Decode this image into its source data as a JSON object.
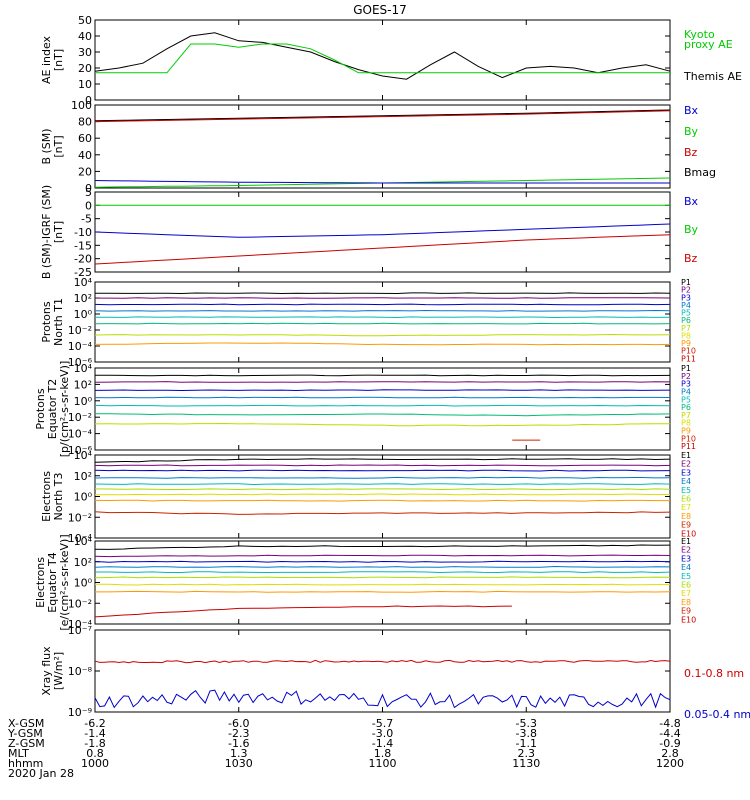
{
  "title": "GOES-17",
  "panels": [
    {
      "id": "ae",
      "ylabel": "AE index",
      "units": "[nT]",
      "yticks": [
        "50",
        "40",
        "30",
        "20",
        "10",
        "0"
      ],
      "ylim": [
        0,
        50
      ],
      "legend": [
        {
          "text": "Kyoto",
          "color": "#00cc00"
        },
        {
          "text": "proxy AE",
          "color": "#00cc00"
        },
        {
          "text": "Themis AE",
          "color": "#000000"
        }
      ]
    },
    {
      "id": "bsm",
      "ylabel": "B (SM)",
      "units": "[nT]",
      "yticks": [
        "100",
        "80",
        "60",
        "40",
        "20",
        "0"
      ],
      "ylim": [
        0,
        100
      ],
      "legend": [
        {
          "text": "Bx",
          "color": "#0000cc"
        },
        {
          "text": "By",
          "color": "#00cc00"
        },
        {
          "text": "Bz",
          "color": "#cc0000"
        },
        {
          "text": "Bmag",
          "color": "#000000"
        }
      ]
    },
    {
      "id": "bigrf",
      "ylabel": "B (SM)-IGRF (SM)",
      "units": "[nT]",
      "yticks": [
        "5",
        "0",
        "-5",
        "-10",
        "-15",
        "-20",
        "-25"
      ],
      "ylim": [
        -25,
        5
      ],
      "legend": [
        {
          "text": "Bx",
          "color": "#0000cc"
        },
        {
          "text": "By",
          "color": "#00cc00"
        },
        {
          "text": "Bz",
          "color": "#cc0000"
        }
      ]
    },
    {
      "id": "pn",
      "ylabel": "Protons",
      "ylabel2": "North T1",
      "units": "",
      "yticks": [
        "10⁴",
        "10²",
        "10⁰",
        "10⁻²",
        "10⁻⁴",
        "10⁻⁶"
      ],
      "ylim": [
        -6,
        4
      ],
      "legend": [
        {
          "text": "P1",
          "color": "#000000"
        },
        {
          "text": "P2",
          "color": "#7a007a"
        },
        {
          "text": "P3",
          "color": "#0000cc"
        },
        {
          "text": "P4",
          "color": "#007acc"
        },
        {
          "text": "P5",
          "color": "#00bbbb"
        },
        {
          "text": "P6",
          "color": "#00bb77"
        },
        {
          "text": "P7",
          "color": "#bbdd00"
        },
        {
          "text": "P8",
          "color": "#dddd00"
        },
        {
          "text": "P9",
          "color": "#ff9900"
        },
        {
          "text": "P10",
          "color": "#cc2200"
        },
        {
          "text": "P11",
          "color": "#cc0000"
        }
      ]
    },
    {
      "id": "pe",
      "ylabel": "Protons",
      "ylabel2": "Equator T2",
      "units": "[p/(cm²-s-sr-keV)]",
      "yticks": [
        "10⁴",
        "10²",
        "10⁰",
        "10⁻²",
        "10⁻⁴",
        "10⁻⁶"
      ],
      "ylim": [
        -6,
        4
      ],
      "legend": [
        {
          "text": "P1",
          "color": "#000000"
        },
        {
          "text": "P2",
          "color": "#7a007a"
        },
        {
          "text": "P3",
          "color": "#0000cc"
        },
        {
          "text": "P4",
          "color": "#007acc"
        },
        {
          "text": "P5",
          "color": "#00bbbb"
        },
        {
          "text": "P6",
          "color": "#00bb77"
        },
        {
          "text": "P7",
          "color": "#bbdd00"
        },
        {
          "text": "P8",
          "color": "#dddd00"
        },
        {
          "text": "P9",
          "color": "#ff9900"
        },
        {
          "text": "P10",
          "color": "#cc2200"
        },
        {
          "text": "P11",
          "color": "#cc0000"
        }
      ]
    },
    {
      "id": "en",
      "ylabel": "Electrons",
      "ylabel2": "North T3",
      "units": "",
      "yticks": [
        "10⁴",
        "10²",
        "10⁰",
        "10⁻²",
        "10⁻⁴"
      ],
      "ylim": [
        -4,
        4
      ],
      "legend": [
        {
          "text": "E1",
          "color": "#000000"
        },
        {
          "text": "E2",
          "color": "#7a007a"
        },
        {
          "text": "E3",
          "color": "#0000cc"
        },
        {
          "text": "E4",
          "color": "#007acc"
        },
        {
          "text": "E5",
          "color": "#00bbbb"
        },
        {
          "text": "E6",
          "color": "#aadd00"
        },
        {
          "text": "E7",
          "color": "#dddd00"
        },
        {
          "text": "E8",
          "color": "#ff9900"
        },
        {
          "text": "E9",
          "color": "#cc2200"
        },
        {
          "text": "E10",
          "color": "#cc0000"
        }
      ]
    },
    {
      "id": "ee",
      "ylabel": "Electrons",
      "ylabel2": "Equator T4",
      "units": "[e/(cm²-s-sr-keV)]",
      "yticks": [
        "10⁴",
        "10²",
        "10⁰",
        "10⁻²",
        "10⁻⁴"
      ],
      "ylim": [
        -4,
        4
      ],
      "legend": [
        {
          "text": "E1",
          "color": "#000000"
        },
        {
          "text": "E2",
          "color": "#7a007a"
        },
        {
          "text": "E3",
          "color": "#0000cc"
        },
        {
          "text": "E4",
          "color": "#007acc"
        },
        {
          "text": "E5",
          "color": "#00bbbb"
        },
        {
          "text": "E6",
          "color": "#aadd00"
        },
        {
          "text": "E7",
          "color": "#dddd00"
        },
        {
          "text": "E8",
          "color": "#ff9900"
        },
        {
          "text": "E9",
          "color": "#cc2200"
        },
        {
          "text": "E10",
          "color": "#cc0000"
        }
      ]
    },
    {
      "id": "xray",
      "ylabel": "Xray flux",
      "units": "[W/m²]",
      "yticks": [
        "10⁻⁷",
        "10⁻⁸",
        "10⁻⁹"
      ],
      "ylim": [
        -9,
        -7
      ],
      "legend": [
        {
          "text": "0.1-0.8 nm",
          "color": "#cc0000"
        },
        {
          "text": "0.05-0.4 nm",
          "color": "#0000cc"
        }
      ]
    }
  ],
  "xaxis": {
    "rows": [
      {
        "label": "X-GSM",
        "values": [
          "-6.2",
          "-6.0",
          "-5.7",
          "-5.3",
          "-4.8"
        ]
      },
      {
        "label": "Y-GSM",
        "values": [
          "-1.4",
          "-2.3",
          "-3.0",
          "-3.8",
          "-4.4"
        ]
      },
      {
        "label": "Z-GSM",
        "values": [
          "-1.8",
          "-1.6",
          "-1.4",
          "-1.1",
          "-0.9"
        ]
      },
      {
        "label": "MLT",
        "values": [
          "0.8",
          "1.3",
          "1.8",
          "2.3",
          "2.8"
        ]
      },
      {
        "label": "hhmm",
        "values": [
          "1000",
          "1030",
          "1100",
          "1130",
          "1200"
        ]
      }
    ],
    "date": "2020 Jan 28"
  },
  "chart_data": [
    {
      "type": "line",
      "title": "GOES-17",
      "ylabel": "AE index [nT]",
      "ylim": [
        0,
        50
      ],
      "x": [
        "1000",
        "1005",
        "1010",
        "1015",
        "1020",
        "1025",
        "1030",
        "1035",
        "1040",
        "1045",
        "1050",
        "1055",
        "1100",
        "1105",
        "1110",
        "1115",
        "1120",
        "1125",
        "1130",
        "1135",
        "1140",
        "1145",
        "1150",
        "1155",
        "1200"
      ],
      "series": [
        {
          "name": "Themis AE",
          "color": "#000000",
          "values": [
            18,
            20,
            23,
            32,
            40,
            42,
            37,
            36,
            33,
            30,
            24,
            19,
            15,
            13,
            22,
            30,
            21,
            14,
            20,
            21,
            20,
            17,
            20,
            22,
            18
          ]
        },
        {
          "name": "Kyoto proxy AE",
          "color": "#00cc00",
          "values": [
            17,
            17,
            17,
            17,
            35,
            35,
            33,
            35,
            35,
            32,
            25,
            17,
            17,
            17,
            17,
            17,
            17,
            17,
            17,
            17,
            17,
            17,
            17,
            17,
            17
          ]
        }
      ]
    },
    {
      "type": "line",
      "ylabel": "B (SM) [nT]",
      "ylim": [
        0,
        100
      ],
      "x": [
        "1000",
        "1030",
        "1100",
        "1130",
        "1200"
      ],
      "series": [
        {
          "name": "Bmag",
          "color": "#000000",
          "values": [
            81,
            84,
            87,
            90,
            94
          ]
        },
        {
          "name": "Bz",
          "color": "#cc0000",
          "values": [
            80,
            83,
            86,
            89,
            93
          ]
        },
        {
          "name": "By",
          "color": "#00cc00",
          "values": [
            1,
            3,
            6,
            9,
            12
          ]
        },
        {
          "name": "Bx",
          "color": "#0000cc",
          "values": [
            9,
            7,
            6,
            6,
            6
          ]
        }
      ]
    },
    {
      "type": "line",
      "ylabel": "B (SM)-IGRF (SM) [nT]",
      "ylim": [
        -25,
        5
      ],
      "x": [
        "1000",
        "1030",
        "1100",
        "1130",
        "1200"
      ],
      "series": [
        {
          "name": "By",
          "color": "#00cc00",
          "values": [
            0,
            0,
            0,
            0,
            0
          ]
        },
        {
          "name": "Bx",
          "color": "#0000cc",
          "values": [
            -10,
            -12,
            -11,
            -9,
            -7
          ]
        },
        {
          "name": "Bz",
          "color": "#cc0000",
          "values": [
            -22,
            -19,
            -16,
            -13,
            -11
          ]
        }
      ]
    },
    {
      "type": "line",
      "ylabel": "Protons North T1 (log10)",
      "ylim": [
        -6,
        4
      ],
      "x": [
        "1000",
        "1030",
        "1100",
        "1130",
        "1200"
      ],
      "series": [
        {
          "name": "P1",
          "values": [
            2.6,
            2.6,
            2.6,
            2.6,
            2.6
          ]
        },
        {
          "name": "P2",
          "values": [
            2.0,
            2.0,
            2.0,
            2.0,
            2.0
          ]
        },
        {
          "name": "P3",
          "values": [
            1.2,
            1.2,
            1.2,
            1.2,
            1.2
          ]
        },
        {
          "name": "P4",
          "values": [
            0.4,
            0.4,
            0.4,
            0.4,
            0.4
          ]
        },
        {
          "name": "P5",
          "values": [
            -0.4,
            -0.4,
            -0.4,
            -0.4,
            -0.4
          ]
        },
        {
          "name": "P6",
          "values": [
            -1.2,
            -1.2,
            -1.2,
            -1.2,
            -1.2
          ]
        },
        {
          "name": "P7",
          "values": [
            -2.6,
            -2.6,
            -2.7,
            -2.6,
            -2.6
          ]
        },
        {
          "name": "P9",
          "values": [
            -3.8,
            -3.6,
            -3.8,
            -3.8,
            -3.8
          ]
        }
      ]
    },
    {
      "type": "line",
      "ylabel": "Protons Equator T2 [p/(cm2-s-sr-keV)] (log10)",
      "ylim": [
        -6,
        4
      ],
      "x": [
        "1000",
        "1030",
        "1100",
        "1130",
        "1200"
      ],
      "series": [
        {
          "name": "P1",
          "values": [
            3.1,
            3.1,
            3.1,
            3.1,
            3.1
          ]
        },
        {
          "name": "P2",
          "values": [
            2.3,
            2.3,
            2.3,
            2.3,
            2.3
          ]
        },
        {
          "name": "P3",
          "values": [
            1.3,
            1.3,
            1.3,
            1.3,
            1.3
          ]
        },
        {
          "name": "P4",
          "values": [
            0.4,
            0.4,
            0.4,
            0.4,
            0.4
          ]
        },
        {
          "name": "P5",
          "values": [
            -0.6,
            -0.6,
            -0.6,
            -0.6,
            -0.6
          ]
        },
        {
          "name": "P6",
          "values": [
            -1.6,
            -1.7,
            -1.6,
            -1.8,
            -1.6
          ]
        },
        {
          "name": "P7",
          "values": [
            -2.8,
            -2.8,
            -3.0,
            -3.0,
            -2.8
          ]
        },
        {
          "name": "P10",
          "values": [
            null,
            null,
            null,
            -4.8,
            null
          ]
        }
      ]
    },
    {
      "type": "line",
      "ylabel": "Electrons North T3 (log10)",
      "ylim": [
        -4,
        4
      ],
      "x": [
        "1000",
        "1030",
        "1100",
        "1130",
        "1200"
      ],
      "series": [
        {
          "name": "E1",
          "values": [
            3.3,
            3.6,
            3.6,
            3.6,
            3.6
          ]
        },
        {
          "name": "E2",
          "values": [
            3.0,
            3.0,
            3.0,
            3.0,
            3.0
          ]
        },
        {
          "name": "E3",
          "values": [
            2.5,
            2.5,
            2.5,
            2.5,
            2.5
          ]
        },
        {
          "name": "E4",
          "values": [
            1.8,
            1.8,
            1.8,
            1.8,
            1.8
          ]
        },
        {
          "name": "E5",
          "values": [
            1.2,
            1.2,
            1.2,
            1.2,
            1.2
          ]
        },
        {
          "name": "E6",
          "values": [
            0.7,
            0.7,
            0.7,
            0.7,
            0.7
          ]
        },
        {
          "name": "E7",
          "values": [
            0.2,
            0.2,
            0.2,
            0.2,
            0.2
          ]
        },
        {
          "name": "E8",
          "values": [
            -0.4,
            -0.4,
            -0.4,
            -0.4,
            -0.4
          ]
        },
        {
          "name": "E9",
          "values": [
            -1.5,
            -1.7,
            -1.6,
            -1.6,
            -1.5
          ]
        }
      ]
    },
    {
      "type": "line",
      "ylabel": "Electrons Equator T4 [e/(cm2-s-sr-keV)] (log10)",
      "ylim": [
        -4,
        4
      ],
      "x": [
        "1000",
        "1030",
        "1100",
        "1130",
        "1200"
      ],
      "series": [
        {
          "name": "E1",
          "values": [
            3.2,
            3.5,
            3.5,
            3.5,
            3.6
          ]
        },
        {
          "name": "E2",
          "values": [
            2.5,
            2.6,
            2.6,
            2.6,
            2.6
          ]
        },
        {
          "name": "E3",
          "values": [
            2.0,
            2.0,
            2.0,
            2.0,
            2.0
          ]
        },
        {
          "name": "E4",
          "values": [
            1.5,
            1.5,
            1.5,
            1.5,
            1.5
          ]
        },
        {
          "name": "E5",
          "values": [
            1.0,
            1.0,
            1.0,
            1.0,
            1.0
          ]
        },
        {
          "name": "E6",
          "values": [
            0.5,
            0.5,
            0.5,
            0.5,
            0.5
          ]
        },
        {
          "name": "E7",
          "values": [
            -0.2,
            -0.2,
            -0.2,
            -0.2,
            -0.2
          ]
        },
        {
          "name": "E8",
          "values": [
            -0.9,
            -0.9,
            -0.9,
            -0.9,
            -0.9
          ]
        },
        {
          "name": "E10",
          "values": [
            -3.3,
            -2.5,
            -2.3,
            -2.3,
            null
          ]
        }
      ]
    },
    {
      "type": "line",
      "ylabel": "Xray flux [W/m2] (log10)",
      "ylim": [
        -9,
        -7
      ],
      "x": [
        "1000",
        "1030",
        "1100",
        "1130",
        "1200"
      ],
      "series": [
        {
          "name": "0.1-0.8 nm",
          "color": "#cc0000",
          "values": [
            -7.78,
            -7.77,
            -7.76,
            -7.77,
            -7.76
          ]
        },
        {
          "name": "0.05-0.4 nm",
          "color": "#0000cc",
          "values": [
            -8.75,
            -8.6,
            -8.7,
            -8.75,
            -8.7
          ]
        }
      ]
    }
  ]
}
